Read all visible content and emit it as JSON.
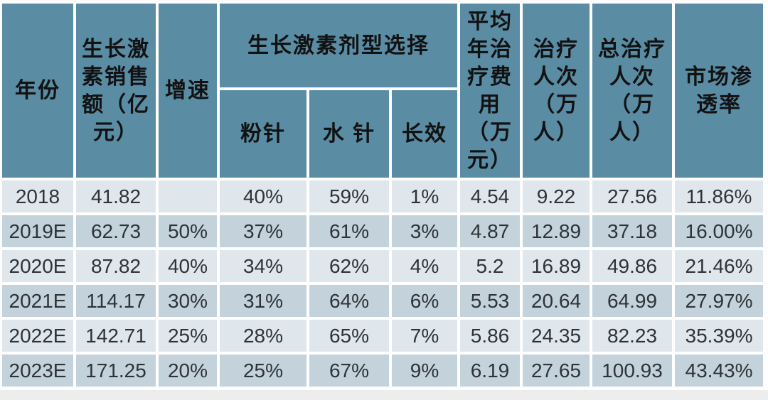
{
  "colors": {
    "header_bg": "#5a8ca4",
    "row_light": "#dfe7ec",
    "row_dark": "#c3d2db",
    "gridline": "#ffffff",
    "header_text": "#121212",
    "cell_text": "#2d3338"
  },
  "chart_data": {
    "type": "table",
    "title": "",
    "group_header": "生长激素剂型选择",
    "columns": [
      {
        "id": "year",
        "label": "年份"
      },
      {
        "id": "sales",
        "label": "生长激素销售额（亿元）"
      },
      {
        "id": "growth_rate",
        "label": "增速"
      },
      {
        "id": "powder_injection",
        "label": "粉针",
        "group": "生长激素剂型选择"
      },
      {
        "id": "water_injection",
        "label": "水 针",
        "group": "生长激素剂型选择"
      },
      {
        "id": "long_acting",
        "label": "长效",
        "group": "生长激素剂型选择"
      },
      {
        "id": "avg_annual_cost",
        "label": "平均年治疗费用（万元）"
      },
      {
        "id": "treated_patients",
        "label": "治疗人次（万人）"
      },
      {
        "id": "total_treated_patients",
        "label": "总治疗人次（万人）"
      },
      {
        "id": "market_penetration",
        "label": "市场渗透率"
      }
    ],
    "rows": [
      [
        "2018",
        "41.82",
        "",
        "40%",
        "59%",
        "1%",
        "4.54",
        "9.22",
        "27.56",
        "11.86%"
      ],
      [
        "2019E",
        "62.73",
        "50%",
        "37%",
        "61%",
        "3%",
        "4.87",
        "12.89",
        "37.18",
        "16.00%"
      ],
      [
        "2020E",
        "87.82",
        "40%",
        "34%",
        "62%",
        "4%",
        "5.2",
        "16.89",
        "49.86",
        "21.46%"
      ],
      [
        "2021E",
        "114.17",
        "30%",
        "31%",
        "64%",
        "6%",
        "5.53",
        "20.64",
        "64.99",
        "27.97%"
      ],
      [
        "2022E",
        "142.71",
        "25%",
        "28%",
        "65%",
        "7%",
        "5.86",
        "24.35",
        "82.23",
        "35.39%"
      ],
      [
        "2023E",
        "171.25",
        "20%",
        "25%",
        "67%",
        "9%",
        "6.19",
        "27.65",
        "100.93",
        "43.43%"
      ]
    ]
  }
}
